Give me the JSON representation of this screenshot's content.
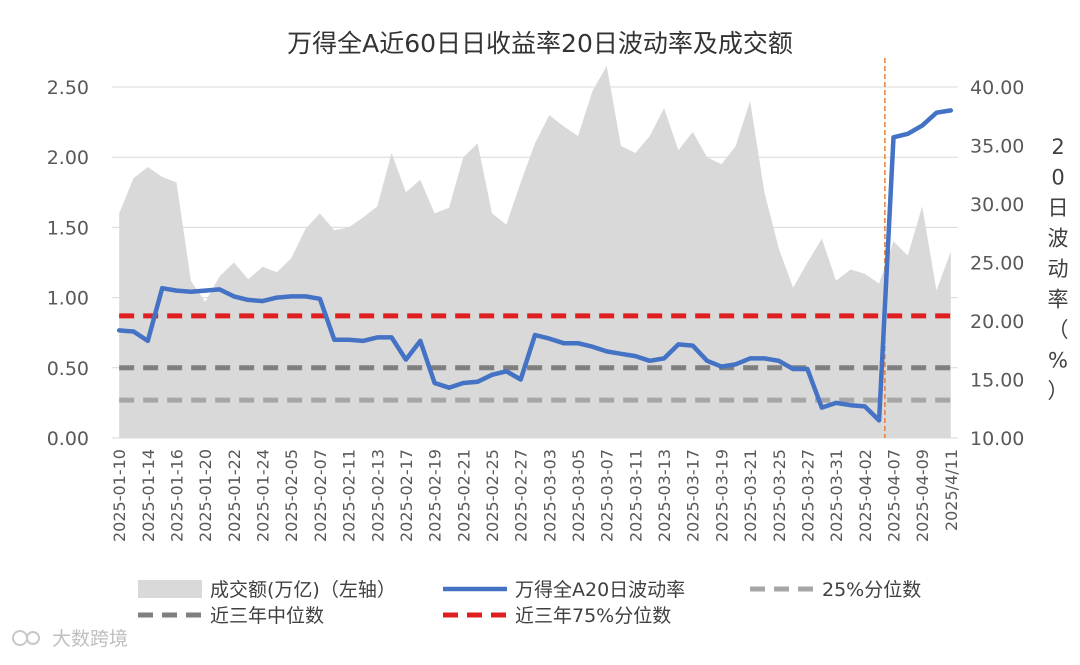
{
  "chart_data": {
    "type": "area+line",
    "title": "万得全A近60日日收益率20日波动率及成交额",
    "y_left": {
      "ticks": [
        "0.00",
        "0.50",
        "1.00",
        "1.50",
        "2.00",
        "2.50"
      ],
      "lim": [
        0,
        2.5
      ]
    },
    "y_right": {
      "label": "20日波动率（%）",
      "ticks": [
        "10.00",
        "15.00",
        "20.00",
        "25.00",
        "30.00",
        "35.00",
        "40.00"
      ],
      "lim": [
        10,
        40
      ]
    },
    "x_tick_labels": [
      "2025-01-10",
      "2025-01-14",
      "2025-01-16",
      "2025-01-20",
      "2025-01-22",
      "2025-01-24",
      "2025-02-05",
      "2025-02-07",
      "2025-02-11",
      "2025-02-13",
      "2025-02-17",
      "2025-02-19",
      "2025-02-21",
      "2025-02-25",
      "2025-02-27",
      "2025-03-03",
      "2025-03-05",
      "2025-03-07",
      "2025-03-11",
      "2025-03-13",
      "2025-03-17",
      "2025-03-19",
      "2025-03-21",
      "2025-03-25",
      "2025-03-27",
      "2025-03-31",
      "2025-04-02",
      "2025-04-07",
      "2025-04-09",
      "2025/4/11"
    ],
    "n_points": 59,
    "volume": [
      1.6,
      1.85,
      1.93,
      1.86,
      1.82,
      1.12,
      0.97,
      1.15,
      1.25,
      1.13,
      1.22,
      1.18,
      1.28,
      1.49,
      1.6,
      1.48,
      1.5,
      1.57,
      1.65,
      2.03,
      1.75,
      1.84,
      1.6,
      1.64,
      2.0,
      2.1,
      1.6,
      1.52,
      1.82,
      2.1,
      2.3,
      2.22,
      2.15,
      2.47,
      2.65,
      2.08,
      2.03,
      2.15,
      2.35,
      2.05,
      2.18,
      2.0,
      1.95,
      2.08,
      2.4,
      1.75,
      1.35,
      1.07,
      1.25,
      1.42,
      1.12,
      1.2,
      1.17,
      1.1,
      1.4,
      1.3,
      1.65,
      1.05,
      1.33
    ],
    "volatility": [
      19.2,
      19.1,
      18.3,
      22.8,
      22.6,
      22.5,
      22.6,
      22.7,
      22.1,
      21.8,
      21.7,
      22.0,
      22.1,
      22.1,
      21.9,
      18.4,
      18.4,
      18.3,
      18.6,
      18.6,
      16.7,
      18.3,
      14.7,
      14.3,
      14.7,
      14.8,
      15.4,
      15.7,
      15.0,
      18.8,
      18.5,
      18.1,
      18.1,
      17.8,
      17.4,
      17.2,
      17.0,
      16.6,
      16.8,
      18.0,
      17.9,
      16.6,
      16.1,
      16.3,
      16.8,
      16.8,
      16.6,
      15.9,
      15.9,
      12.6,
      13.0,
      12.8,
      12.7,
      11.5,
      35.7,
      36.0,
      36.7,
      37.8,
      38.0
    ],
    "median_3y": 0.5,
    "p25": 0.27,
    "p75_3y": 0.87,
    "event_line_index": 53.4,
    "colors": {
      "volume": "#d9d9d9",
      "volatility": "#4472c4",
      "p25": "#a6a6a6",
      "median": "#7f7f7f",
      "p75": "#e02020",
      "event": "#ed7d31",
      "grid": "#d9d9d9"
    },
    "legend": [
      {
        "key": "volume",
        "label": "成交额(万亿)（左轴）"
      },
      {
        "key": "volatility",
        "label": "万得全A20日波动率"
      },
      {
        "key": "p25",
        "label": "25%分位数"
      },
      {
        "key": "median",
        "label": "近三年中位数"
      },
      {
        "key": "p75",
        "label": "近三年75%分位数"
      }
    ]
  },
  "watermark": "大数跨境"
}
